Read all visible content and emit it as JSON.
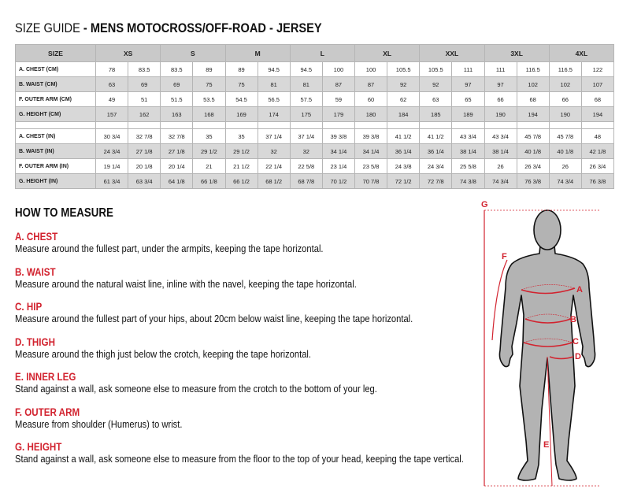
{
  "title": {
    "prefix": "SIZE GUIDE",
    "bold": " - MENS MOTOCROSS/OFF-ROAD - JERSEY"
  },
  "table": {
    "header_label": "SIZE",
    "sizes": [
      "XS",
      "S",
      "M",
      "L",
      "XL",
      "XXL",
      "3XL",
      "4XL"
    ],
    "cm_rows": [
      {
        "label": "A. CHEST (CM)",
        "values": [
          "78",
          "83.5",
          "83.5",
          "89",
          "89",
          "94.5",
          "94.5",
          "100",
          "100",
          "105.5",
          "105.5",
          "111",
          "111",
          "116.5",
          "116.5",
          "122"
        ]
      },
      {
        "label": "B. WAIST (CM)",
        "values": [
          "63",
          "69",
          "69",
          "75",
          "75",
          "81",
          "81",
          "87",
          "87",
          "92",
          "92",
          "97",
          "97",
          "102",
          "102",
          "107"
        ]
      },
      {
        "label": "F. OUTER ARM (CM)",
        "values": [
          "49",
          "51",
          "51.5",
          "53.5",
          "54.5",
          "56.5",
          "57.5",
          "59",
          "60",
          "62",
          "63",
          "65",
          "66",
          "68",
          "66",
          "68"
        ]
      },
      {
        "label": "G. HEIGHT (CM)",
        "values": [
          "157",
          "162",
          "163",
          "168",
          "169",
          "174",
          "175",
          "179",
          "180",
          "184",
          "185",
          "189",
          "190",
          "194",
          "190",
          "194"
        ]
      }
    ],
    "in_rows": [
      {
        "label": "A. CHEST (IN)",
        "values": [
          "30 3/4",
          "32 7/8",
          "32 7/8",
          "35",
          "35",
          "37 1/4",
          "37 1/4",
          "39 3/8",
          "39 3/8",
          "41 1/2",
          "41 1/2",
          "43 3/4",
          "43 3/4",
          "45 7/8",
          "45 7/8",
          "48"
        ]
      },
      {
        "label": "B. WAIST (IN)",
        "values": [
          "24 3/4",
          "27 1/8",
          "27 1/8",
          "29 1/2",
          "29 1/2",
          "32",
          "32",
          "34 1/4",
          "34 1/4",
          "36 1/4",
          "36 1/4",
          "38 1/4",
          "38 1/4",
          "40 1/8",
          "40 1/8",
          "42 1/8"
        ]
      },
      {
        "label": "F. OUTER ARM (IN)",
        "values": [
          "19 1/4",
          "20 1/8",
          "20 1/4",
          "21",
          "21 1/2",
          "22 1/4",
          "22 5/8",
          "23 1/4",
          "23 5/8",
          "24 3/8",
          "24 3/4",
          "25 5/8",
          "26",
          "26 3/4",
          "26",
          "26 3/4"
        ]
      },
      {
        "label": "G. HEIGHT (IN)",
        "values": [
          "61 3/4",
          "63 3/4",
          "64 1/8",
          "66 1/8",
          "66 1/2",
          "68 1/2",
          "68 7/8",
          "70 1/2",
          "70 7/8",
          "72 1/2",
          "72 7/8",
          "74 3/8",
          "74 3/4",
          "76 3/8",
          "74 3/4",
          "76 3/8"
        ]
      }
    ]
  },
  "how_to_measure": {
    "heading": "HOW TO MEASURE",
    "steps": [
      {
        "title": "A. CHEST",
        "text": "Measure around the fullest part, under the armpits, keeping the tape horizontal."
      },
      {
        "title": "B. WAIST",
        "text": "Measure around the natural waist line, inline with the navel, keeping the tape horizontal."
      },
      {
        "title": "C. HIP",
        "text": "Measure around the fullest part of your hips, about 20cm below waist line, keeping the tape horizontal."
      },
      {
        "title": "D. THIGH",
        "text": "Measure around the thigh just below the crotch, keeping the tape horizontal."
      },
      {
        "title": "E. INNER LEG",
        "text": "Stand against a wall, ask someone else to measure from the crotch to the bottom of your leg."
      },
      {
        "title": "F. OUTER ARM",
        "text": "Measure from shoulder (Humerus) to wrist."
      },
      {
        "title": "G. HEIGHT",
        "text": "Stand against a wall, ask someone else to measure from the floor to the top of your head, keeping the tape vertical."
      }
    ]
  },
  "figure": {
    "labels": {
      "a": "A",
      "b": "B",
      "c": "C",
      "d": "D",
      "e": "E",
      "f": "F",
      "g": "G"
    }
  },
  "colors": {
    "accent": "#d2232f",
    "header_bg": "#c9c9c9",
    "row_alt": "#d8d8d8",
    "body_fill": "#b3b3b3"
  }
}
